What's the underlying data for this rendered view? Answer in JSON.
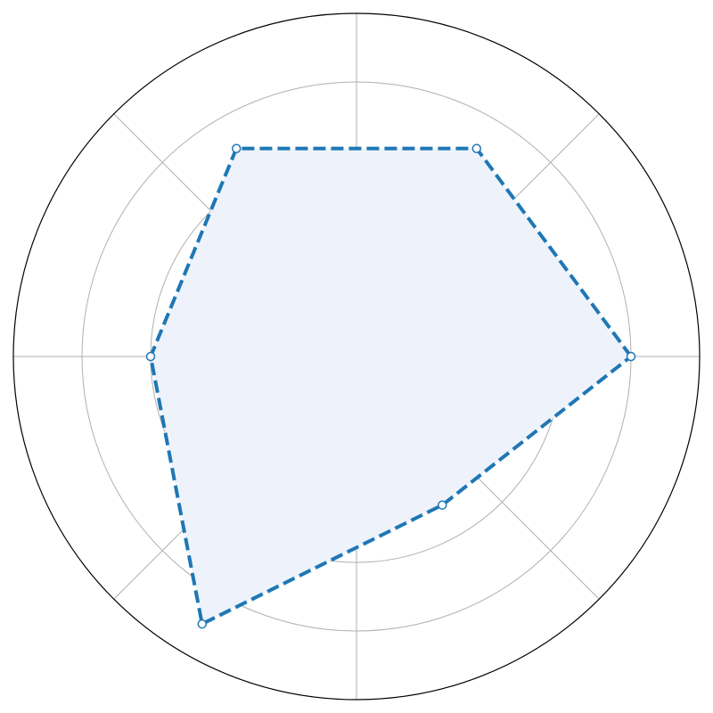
{
  "chart_data": {
    "type": "radar",
    "title": "",
    "rlim": [
      0,
      5
    ],
    "rings": [
      1,
      2,
      3,
      4,
      5
    ],
    "grid": true,
    "spokes": [
      0,
      45,
      90,
      135,
      180,
      225,
      270,
      315
    ],
    "series": [
      {
        "points": [
          {
            "angle": 0,
            "value": 4.0
          },
          {
            "angle": 60,
            "value": 3.5
          },
          {
            "angle": 120,
            "value": 3.5
          },
          {
            "angle": 180,
            "value": 3.0
          },
          {
            "angle": 240,
            "value": 4.5
          },
          {
            "angle": 300,
            "value": 2.5
          }
        ],
        "line_color": "#1f77b4",
        "fill_color": "#eef3fb",
        "line_style": "dashed"
      }
    ]
  },
  "colors": {
    "grid": "#b0b0b0",
    "outer_ring": "#000000",
    "marker_fill": "#ffffff"
  }
}
